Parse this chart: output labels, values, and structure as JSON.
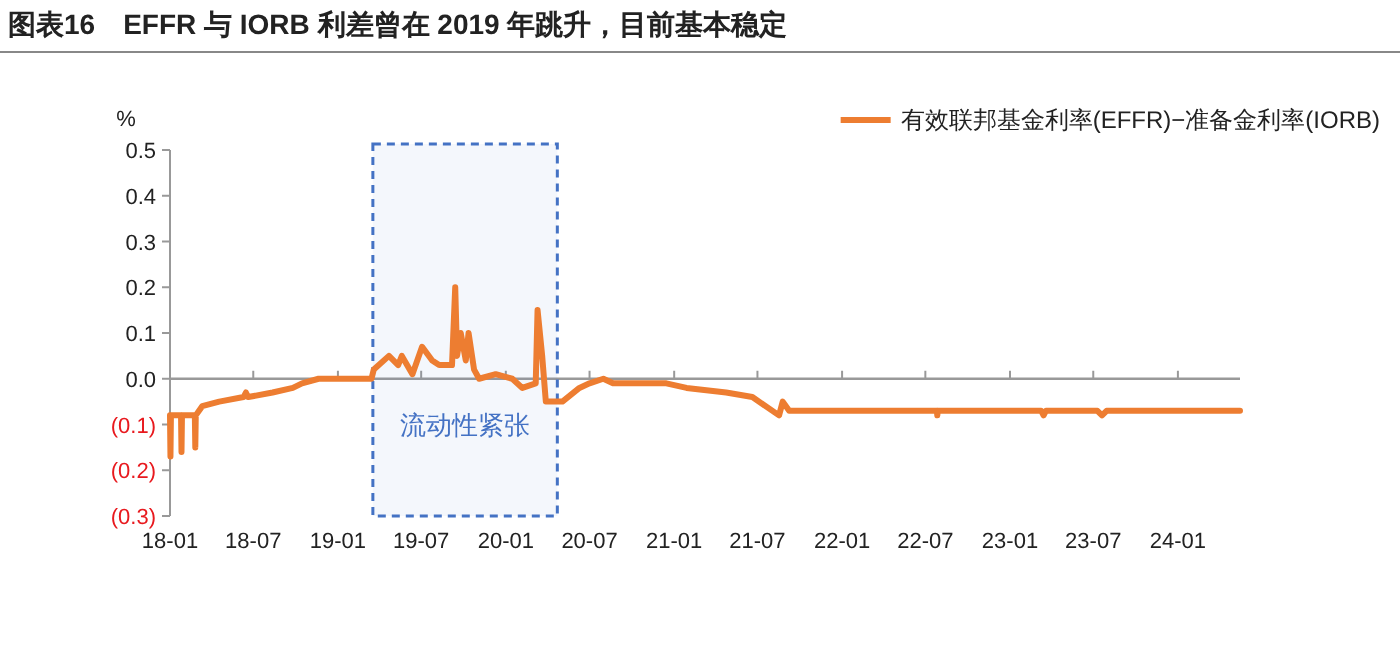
{
  "chart_data": {
    "type": "line",
    "title": "图表16　EFFR 与 IORB 利差曾在 2019 年跳升，目前基本稳定",
    "ylabel": "%",
    "series": [
      {
        "name": "有效联邦基金利率(EFFR)−准备金利率(IORB)",
        "color": "#ed7d31",
        "x": [
          "2018-01-01",
          "2018-01-02",
          "2018-01-03",
          "2018-01-25",
          "2018-01-26",
          "2018-01-27",
          "2018-02-24",
          "2018-02-25",
          "2018-02-26",
          "2018-03-12",
          "2018-04-18",
          "2018-06-10",
          "2018-06-15",
          "2018-06-20",
          "2018-08-12",
          "2018-09-25",
          "2018-10-15",
          "2018-11-20",
          "2019-03-15",
          "2019-03-20",
          "2019-04-22",
          "2019-05-12",
          "2019-05-20",
          "2019-06-12",
          "2019-07-03",
          "2019-07-25",
          "2019-08-09",
          "2019-09-06",
          "2019-09-13",
          "2019-09-17",
          "2019-09-25",
          "2019-10-06",
          "2019-10-12",
          "2019-10-24",
          "2019-11-04",
          "2019-12-10",
          "2020-01-15",
          "2020-02-06",
          "2020-03-06",
          "2020-03-10",
          "2020-03-20",
          "2020-03-28",
          "2020-05-03",
          "2020-06-09",
          "2020-07-01",
          "2020-07-31",
          "2020-08-21",
          "2020-12-15",
          "2021-01-28",
          "2021-04-24",
          "2021-06-20",
          "2021-08-17",
          "2021-08-25",
          "2021-09-08",
          "2022-07-26",
          "2022-07-27",
          "2022-07-28",
          "2023-03-10",
          "2023-03-15",
          "2023-03-20",
          "2023-07-10",
          "2023-07-20",
          "2023-07-30",
          "2024-05-15"
        ],
        "values": [
          -0.08,
          -0.17,
          -0.08,
          -0.08,
          -0.16,
          -0.08,
          -0.08,
          -0.15,
          -0.08,
          -0.06,
          -0.05,
          -0.04,
          -0.03,
          -0.04,
          -0.03,
          -0.02,
          -0.01,
          0.0,
          0.0,
          0.02,
          0.05,
          0.03,
          0.05,
          0.01,
          0.07,
          0.04,
          0.03,
          0.03,
          0.2,
          0.05,
          0.1,
          0.04,
          0.1,
          0.02,
          0.0,
          0.01,
          0.0,
          -0.02,
          -0.01,
          0.15,
          0.05,
          -0.05,
          -0.05,
          -0.02,
          -0.01,
          0.0,
          -0.01,
          -0.01,
          -0.02,
          -0.03,
          -0.04,
          -0.08,
          -0.05,
          -0.07,
          -0.07,
          -0.08,
          -0.07,
          -0.07,
          -0.08,
          -0.07,
          -0.07,
          -0.08,
          -0.07,
          -0.07
        ]
      }
    ],
    "xlim": [
      "2018-01-01",
      "2024-05-15"
    ],
    "xticks": [
      {
        "value": "2018-01-01",
        "label": "18-01"
      },
      {
        "value": "2018-07-01",
        "label": "18-07"
      },
      {
        "value": "2019-01-01",
        "label": "19-01"
      },
      {
        "value": "2019-07-01",
        "label": "19-07"
      },
      {
        "value": "2020-01-01",
        "label": "20-01"
      },
      {
        "value": "2020-07-01",
        "label": "20-07"
      },
      {
        "value": "2021-01-01",
        "label": "21-01"
      },
      {
        "value": "2021-07-01",
        "label": "21-07"
      },
      {
        "value": "2022-01-01",
        "label": "22-01"
      },
      {
        "value": "2022-07-01",
        "label": "22-07"
      },
      {
        "value": "2023-01-01",
        "label": "23-01"
      },
      {
        "value": "2023-07-01",
        "label": "23-07"
      },
      {
        "value": "2024-01-01",
        "label": "24-01"
      }
    ],
    "ylim": [
      -0.3,
      0.5
    ],
    "yticks": [
      {
        "value": -0.3,
        "label": "(0.3)"
      },
      {
        "value": -0.2,
        "label": "(0.2)"
      },
      {
        "value": -0.1,
        "label": "(0.1)"
      },
      {
        "value": 0,
        "label": "0.0"
      },
      {
        "value": 0.1,
        "label": "0.1"
      },
      {
        "value": 0.2,
        "label": "0.2"
      },
      {
        "value": 0.3,
        "label": "0.3"
      },
      {
        "value": 0.4,
        "label": "0.4"
      },
      {
        "value": 0.5,
        "label": "0.5"
      }
    ],
    "bands": [
      {
        "axis": "x",
        "from": "2019-03-18",
        "to": "2020-04-22",
        "label": "流动性紧张",
        "color": "#4472c4"
      }
    ],
    "ref_lines": [
      {
        "axis": "y",
        "value": 0,
        "color": "#999999"
      }
    ],
    "legend": "top right",
    "grid": false
  }
}
